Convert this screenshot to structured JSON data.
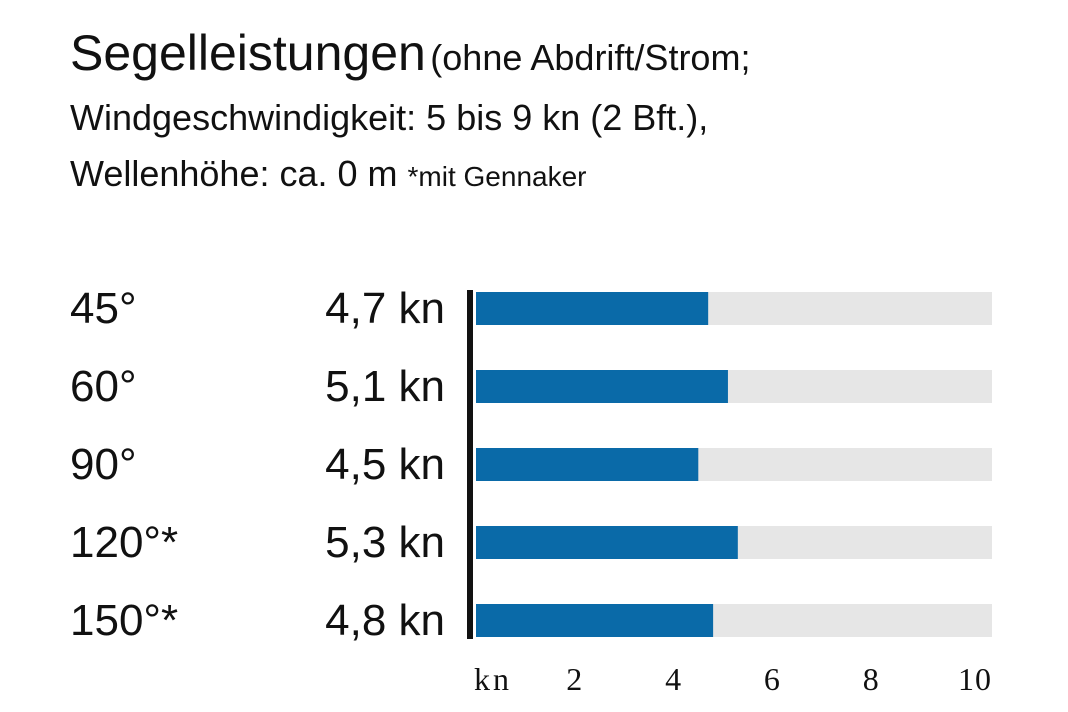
{
  "title": {
    "main": "Segelleistungen",
    "paren": "(ohne Abdrift/Strom;",
    "line2": "Windgeschwindigkeit: 5 bis 9 kn (2 Bft.),",
    "line3": "Wellenhöhe: ca. 0 m",
    "note": "*mit Gennaker"
  },
  "colors": {
    "bar": "#0a6aa8",
    "track": "#e6e6e6",
    "axis": "#111111",
    "text": "#111111"
  },
  "chart_data": {
    "type": "bar",
    "orientation": "horizontal",
    "categories": [
      "45°",
      "60°",
      "90°",
      "120°*",
      "150°*"
    ],
    "value_labels": [
      "4,7 kn",
      "5,1 kn",
      "4,5 kn",
      "5,3 kn",
      "4,8 kn"
    ],
    "values": [
      4.7,
      5.1,
      4.5,
      5.3,
      4.8
    ],
    "xlim": [
      0,
      11
    ],
    "xticks": [
      {
        "value": 0,
        "label": "kn"
      },
      {
        "value": 2,
        "label": "2"
      },
      {
        "value": 4,
        "label": "4"
      },
      {
        "value": 6,
        "label": "6"
      },
      {
        "value": 8,
        "label": "8"
      },
      {
        "value": 10,
        "label": "10"
      }
    ],
    "grid": false,
    "legend": "none"
  }
}
